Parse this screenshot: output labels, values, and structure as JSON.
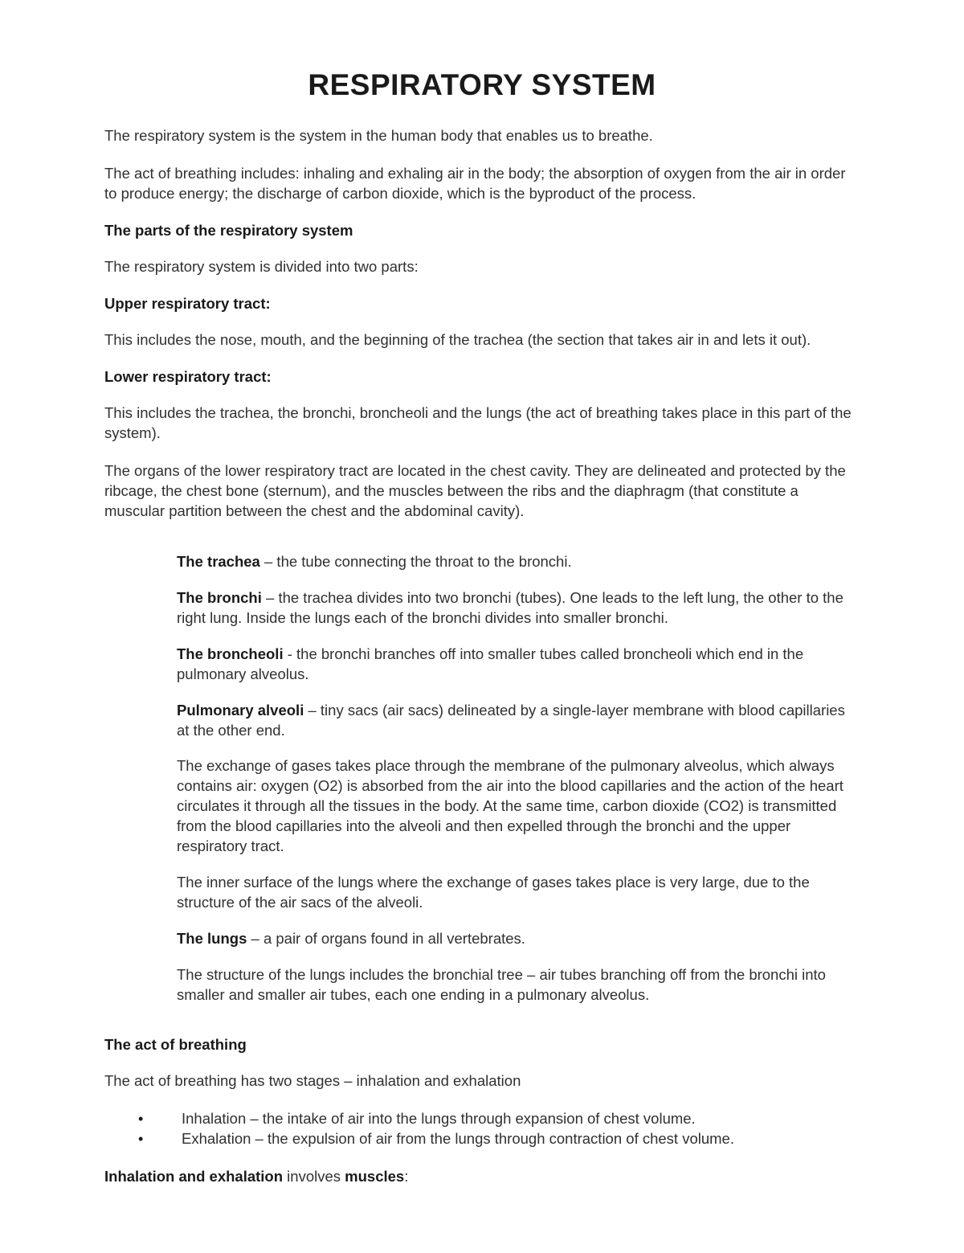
{
  "doc": {
    "title": "RESPIRATORY SYSTEM",
    "intro1": "The respiratory system is the system in the human body that enables us to breathe.",
    "intro2": "The act of breathing includes: inhaling and exhaling air in the body; the absorption of oxygen from the air in order to produce energy; the discharge of carbon dioxide, which is the byproduct of the process.",
    "parts_heading": "The parts of the respiratory system",
    "parts_intro": "The respiratory system is divided into two parts:",
    "upper_heading": "Upper respiratory tract:",
    "upper_body": "This includes the nose, mouth, and the beginning of the trachea (the section that takes air in and lets it out).",
    "lower_heading": "Lower respiratory tract:",
    "lower_body1": "This includes the trachea, the bronchi, broncheoli and the lungs (the act of breathing takes place in this part of the system).",
    "lower_body2": "The organs of the lower respiratory tract are located in the chest cavity. They are delineated and protected by the ribcage, the chest bone (sternum), and the muscles between the ribs and the diaphragm (that constitute a muscular partition between the chest and the abdominal cavity).",
    "defs": {
      "trachea_term": "The trachea",
      "trachea_text": " – the tube connecting the throat to the bronchi.",
      "bronchi_term": "The bronchi",
      "bronchi_text": " – the trachea divides into two bronchi (tubes). One leads to the left lung, the other to the right lung. Inside the lungs each of the bronchi divides into smaller bronchi.",
      "broncheoli_term": "The broncheoli",
      "broncheoli_text": " - the bronchi branches off into smaller tubes called broncheoli which end in the pulmonary alveolus.",
      "alveoli_term": "Pulmonary alveoli",
      "alveoli_text": " – tiny sacs (air sacs) delineated by a single-layer membrane with blood capillaries at the other end.",
      "exchange_text": "The exchange of gases takes place through the membrane of the pulmonary alveolus, which always contains air: oxygen (O2) is absorbed from the air into the blood capillaries and the action of the heart circulates it through all the tissues in the body. At the same time, carbon dioxide (CO2) is transmitted from the blood capillaries into the alveoli and then expelled through the bronchi and the upper respiratory tract.",
      "inner_text": "The inner surface of the lungs where the exchange of gases takes place is very large, due to the structure of the air sacs of the alveoli.",
      "lungs_term": "The lungs",
      "lungs_text": " – a pair of organs found in all vertebrates.",
      "structure_text": "The structure of the lungs includes the bronchial tree – air tubes branching off from the bronchi into smaller and smaller air tubes, each one ending in a pulmonary alveolus."
    },
    "act_heading": "The act of breathing",
    "act_intro": "The act of breathing has two stages – inhalation and exhalation",
    "bullets": {
      "inhalation": "Inhalation – the intake of air into the lungs through expansion of chest volume.",
      "exhalation": "Exhalation – the expulsion of air from the lungs through contraction of chest volume."
    },
    "muscles_a": "Inhalation and exhalation",
    "muscles_b": " involves ",
    "muscles_c": "muscles",
    "muscles_d": ":"
  }
}
